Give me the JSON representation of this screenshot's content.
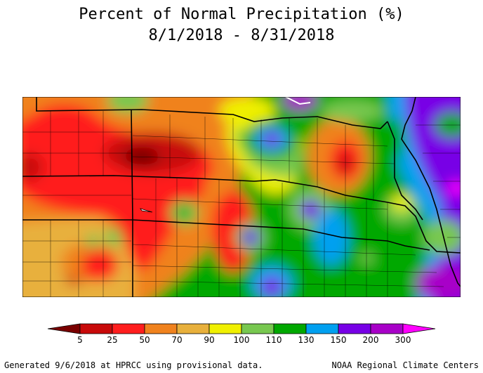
{
  "title": {
    "line1": "Percent of Normal Precipitation (%)",
    "line2": "8/1/2018 - 8/31/2018"
  },
  "legend": {
    "labels": [
      "5",
      "25",
      "50",
      "70",
      "90",
      "100",
      "110",
      "130",
      "150",
      "200",
      "300"
    ],
    "colors": [
      "#7a0000",
      "#c80a0a",
      "#ff1e1e",
      "#f0821e",
      "#e8b03c",
      "#f0f000",
      "#78c850",
      "#00a800",
      "#00a0f0",
      "#7800e6",
      "#a800c8",
      "#ff00ff"
    ]
  },
  "footer": {
    "left": "Generated 9/6/2018 at HPRCC using provisional data.",
    "right": "NOAA Regional Climate Centers"
  },
  "map_colors": {
    "darkred": "#b40a0a",
    "red": "#ff1e1e",
    "orange": "#f0821e",
    "lightorange": "#e8b03c",
    "yellow": "#f0f000",
    "lightgreen": "#78c850",
    "green": "#00a800",
    "blue": "#00a0f0",
    "purple": "#7800e6",
    "magenta": "#a800c8",
    "pink": "#ff00ff"
  }
}
